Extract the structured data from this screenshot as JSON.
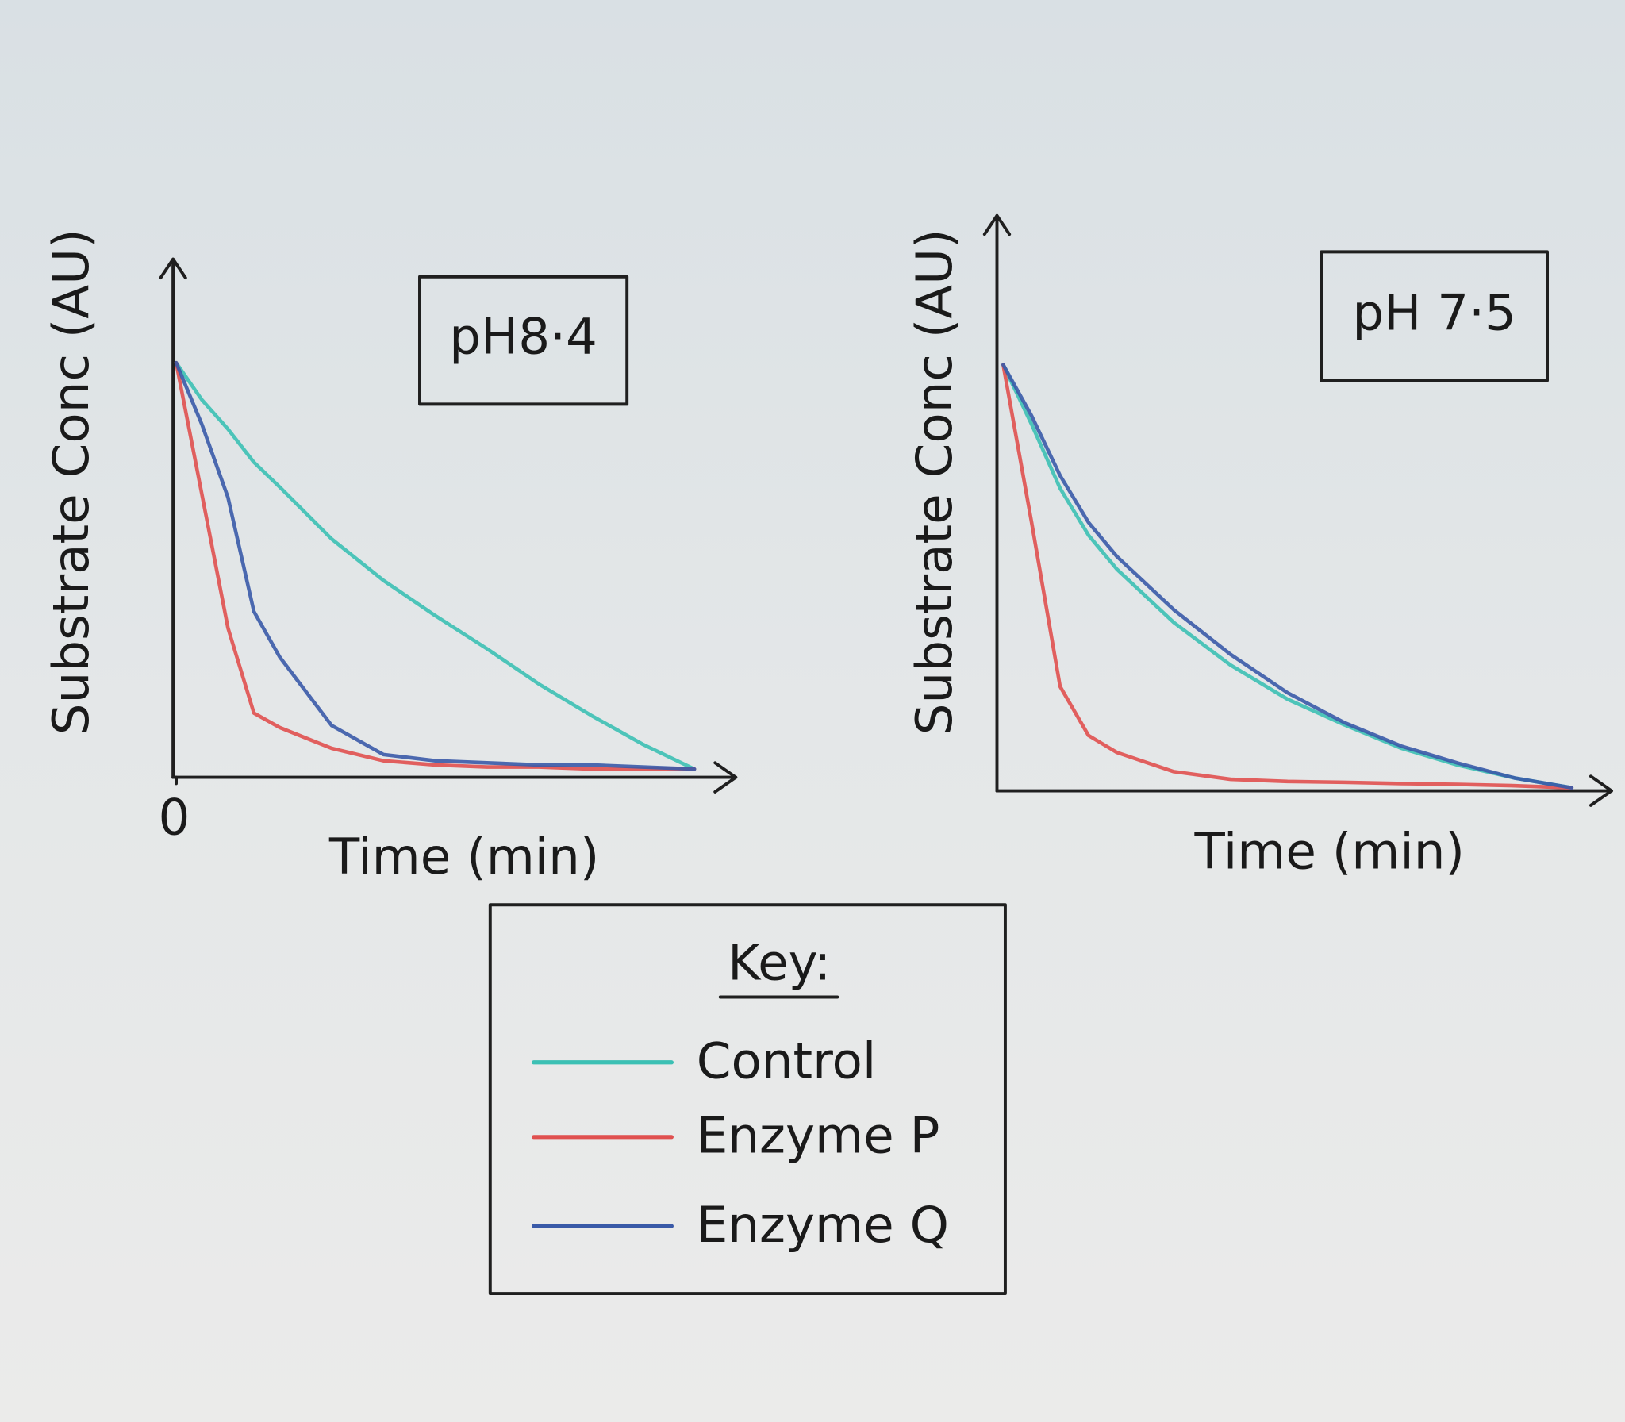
{
  "chart_data": [
    {
      "type": "line",
      "title": "pH8·4",
      "xlabel": "Time (min)",
      "ylabel": "Substrate Conc (AU)",
      "x": [
        0,
        0.5,
        1,
        1.5,
        2,
        3,
        4,
        5,
        6,
        7,
        8,
        9,
        10
      ],
      "xlim": [
        0,
        10.8
      ],
      "ylim": [
        0,
        12.5
      ],
      "xticks": [
        0
      ],
      "series": [
        {
          "color": "#3cc0b4",
          "values": [
            10,
            9.1,
            8.4,
            7.6,
            7.0,
            5.75,
            4.75,
            3.9,
            3.1,
            2.25,
            1.5,
            0.8,
            0.2
          ]
        },
        {
          "color": "#e0504f",
          "values": [
            10,
            6.8,
            3.6,
            1.55,
            1.2,
            0.7,
            0.4,
            0.3,
            0.25,
            0.25,
            0.2,
            0.2,
            0.2
          ]
        },
        {
          "color": "#3a5aa8",
          "values": [
            10,
            8.5,
            6.75,
            4.0,
            2.9,
            1.25,
            0.55,
            0.4,
            0.35,
            0.3,
            0.3,
            0.25,
            0.2
          ]
        }
      ]
    },
    {
      "type": "line",
      "title": "pH 7·5",
      "xlabel": "Time (min)",
      "ylabel": "Substrate Conc (AU)",
      "x": [
        0,
        0.5,
        1,
        1.5,
        2,
        3,
        4,
        5,
        6,
        7,
        8,
        9,
        10
      ],
      "xlim": [
        0,
        10.7
      ],
      "ylim": [
        0,
        13.5
      ],
      "series": [
        {
          "color": "#3cc0b4",
          "values": [
            10,
            8.6,
            7.1,
            6.0,
            5.2,
            3.95,
            2.95,
            2.15,
            1.55,
            1.0,
            0.6,
            0.3,
            0.07
          ]
        },
        {
          "color": "#e0504f",
          "values": [
            10,
            6.3,
            2.45,
            1.3,
            0.9,
            0.45,
            0.27,
            0.22,
            0.2,
            0.17,
            0.15,
            0.12,
            0.07
          ]
        },
        {
          "color": "#3a5aa8",
          "values": [
            10,
            8.8,
            7.4,
            6.3,
            5.5,
            4.25,
            3.2,
            2.3,
            1.6,
            1.05,
            0.65,
            0.3,
            0.07
          ]
        }
      ]
    }
  ],
  "legend": {
    "title": "Key:",
    "entries": [
      "Control",
      "Enzyme P",
      "Enzyme Q"
    ]
  }
}
